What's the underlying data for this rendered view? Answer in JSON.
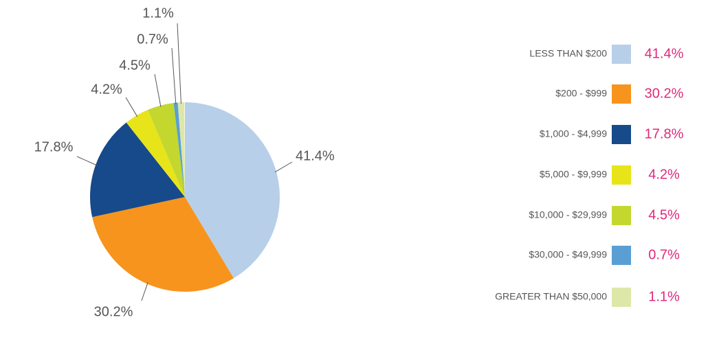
{
  "chart_data": {
    "type": "pie",
    "categories": [
      "LESS THAN $200",
      "$200 - $999",
      "$1,000 - $4,999",
      "$5,000 - $9,999",
      "$10,000 - $29,999",
      "$30,000 - $49,999",
      "GREATER THAN $50,000"
    ],
    "values": [
      41.4,
      30.2,
      17.8,
      4.2,
      4.5,
      0.7,
      1.1
    ],
    "value_labels": [
      "41.4%",
      "30.2%",
      "17.8%",
      "4.2%",
      "4.5%",
      "0.7%",
      "1.1%"
    ],
    "colors": [
      "#b8cfe9",
      "#f7941d",
      "#164a8a",
      "#e8e41a",
      "#c3d72f",
      "#5a9fd4",
      "#dde8a8"
    ]
  }
}
